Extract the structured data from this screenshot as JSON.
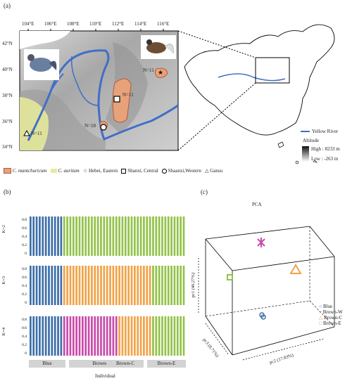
{
  "panel_a": {
    "label": "(a)",
    "lon_ticks": [
      "104°E",
      "106°E",
      "108°E",
      "110°E",
      "112°E",
      "114°E",
      "116°E"
    ],
    "lat_ticks": [
      "42°N",
      "40°N",
      "38°N",
      "36°N",
      "34°N"
    ],
    "site_labels": [
      {
        "text": "N=11",
        "site": "hebei"
      },
      {
        "text": "N=11",
        "site": "shanxi"
      },
      {
        "text": "N=18",
        "site": "shaanxi"
      },
      {
        "text": "N=11",
        "site": "gansu"
      }
    ],
    "legend_river": "Yellow River",
    "legend_altitude_title": "Altitude",
    "legend_high": "High : 8233 m",
    "legend_low": "Low : -263 m",
    "species_legend": [
      {
        "label": "C. mantchuricum",
        "color": "#e8a27a"
      },
      {
        "label": "C. auritum",
        "color": "#e9ec9a"
      }
    ],
    "population_legend": [
      {
        "label": "Hebei, Eastern",
        "symbol": "star"
      },
      {
        "label": "Shanxi, Central",
        "symbol": "square"
      },
      {
        "label": "Shaanxi,Western",
        "symbol": "circle"
      },
      {
        "label": "Gansu",
        "symbol": "triangle"
      }
    ],
    "colors": {
      "river": "#3f6fc8",
      "mantchuricum": "#e8a27a",
      "auritum": "#e9ec9a"
    }
  },
  "panel_b": {
    "label": "(b)",
    "xlabel": "Individual",
    "yticks": [
      "0.8",
      "0.6",
      "0.4",
      "0.2",
      "0"
    ],
    "rows": [
      {
        "label": "K=2"
      },
      {
        "label": "K=3"
      },
      {
        "label": "K=4"
      }
    ],
    "groups": [
      {
        "name": "Blue",
        "n": 11
      },
      {
        "name": "Brown-W",
        "n": 18
      },
      {
        "name": "Brown-C",
        "n": 11
      },
      {
        "name": "Brown-E",
        "n": 11
      }
    ],
    "colors": {
      "blue": "#3d6ea8",
      "green": "#93c24a",
      "orange": "#f0a34a",
      "magenta": "#c84aa8"
    }
  },
  "panel_c": {
    "label": "(c)",
    "title": "PCA",
    "axis_pc1": "pc1 (40.27%)",
    "axis_pc2": "pc2 (17.83%)",
    "axis_pc3": "pc3 (8.71%)",
    "legend": [
      {
        "label": "Blue",
        "color": "#3d6ea8",
        "symbol": "circle"
      },
      {
        "label": "Brown-W",
        "color": "#c84aa8",
        "symbol": "plus"
      },
      {
        "label": "Brown-C",
        "color": "#f0a34a",
        "symbol": "triangle"
      },
      {
        "label": "Brown-E",
        "color": "#93c24a",
        "symbol": "square"
      }
    ]
  }
}
